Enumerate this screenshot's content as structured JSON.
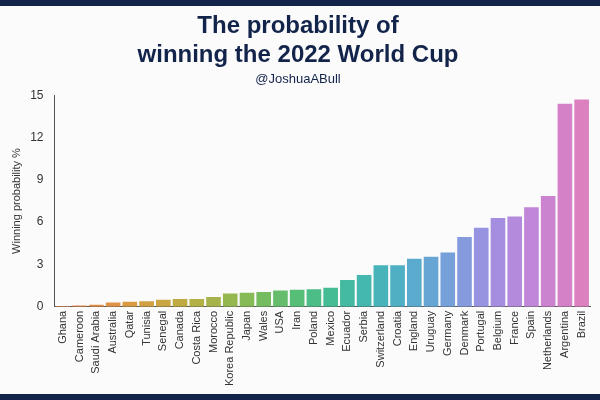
{
  "chart_data": {
    "type": "bar",
    "title": "The probability of winning the 2022 World Cup",
    "subtitle": "@JoshuaABull",
    "y_label": "Winning probability %",
    "categories": [
      "Ghana",
      "Cameroon",
      "Saudi Arabia",
      "Australia",
      "Qatar",
      "Tunisia",
      "Senegal",
      "Canada",
      "Costa Rica",
      "Morocco",
      "Korea Republic",
      "Japan",
      "Wales",
      "USA",
      "Iran",
      "Poland",
      "Mexico",
      "Ecuador",
      "Serbia",
      "Switzerland",
      "Croatia",
      "England",
      "Uruguay",
      "Germany",
      "Denmark",
      "Portugal",
      "Belgium",
      "France",
      "Spain",
      "Netherlands",
      "Argentina",
      "Brazil"
    ],
    "values": [
      0.05,
      0.1,
      0.15,
      0.3,
      0.35,
      0.4,
      0.5,
      0.55,
      0.55,
      0.7,
      0.95,
      1.0,
      1.05,
      1.15,
      1.2,
      1.25,
      1.35,
      1.9,
      2.25,
      2.95,
      2.95,
      3.4,
      3.55,
      3.85,
      4.95,
      5.6,
      6.3,
      6.4,
      7.05,
      7.85,
      14.4,
      14.7
    ],
    "colors": [
      "#e8834a",
      "#e8874a",
      "#e48d45",
      "#df9345",
      "#d99a42",
      "#d2a042",
      "#c9a641",
      "#bfab42",
      "#b3b045",
      "#a5b34a",
      "#95b750",
      "#85ba57",
      "#75bc60",
      "#65bd6b",
      "#57be78",
      "#4cbd86",
      "#45bc94",
      "#43baa1",
      "#44b7ae",
      "#48b4ba",
      "#4fb0c4",
      "#5aabcd",
      "#67a6d4",
      "#76a0da",
      "#869ade",
      "#9694e0",
      "#a58edf",
      "#b38adc",
      "#c086d7",
      "#cb83d0",
      "#d581c8",
      "#dc80bf"
    ],
    "ylim": [
      0,
      15
    ],
    "yticks": [
      0,
      3,
      6,
      9,
      12,
      15
    ],
    "grid": false
  }
}
